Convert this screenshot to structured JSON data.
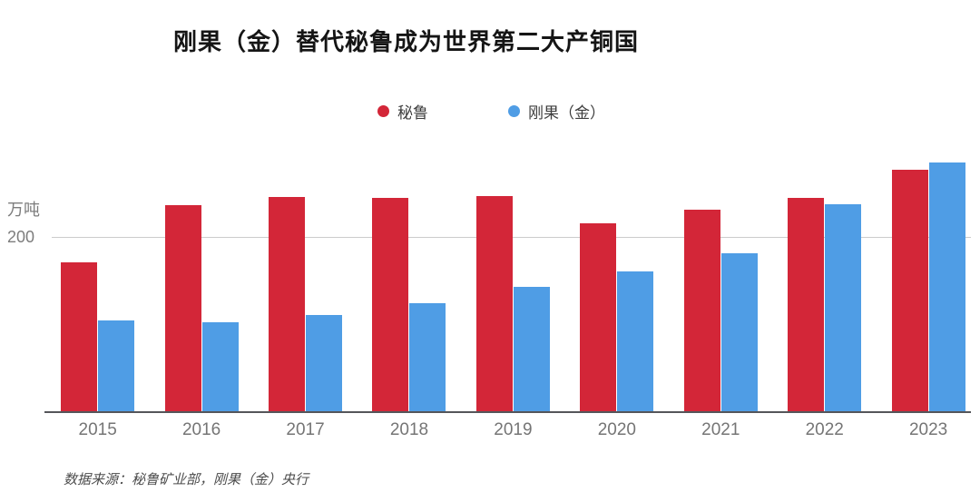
{
  "title": "刚果（金）替代秘鲁成为世界第二大产铜国",
  "legend": [
    {
      "label": "秘鲁",
      "color": "#d32638"
    },
    {
      "label": "刚果（金）",
      "color": "#4f9de5"
    }
  ],
  "y_axis": {
    "unit_label": "万吨",
    "tick_label": "200",
    "tick_value": 200
  },
  "source": "数据来源：秘鲁矿业部，刚果（金）央行",
  "colors": {
    "peru_red": "#d32638",
    "congo_blue": "#4f9de5",
    "axis_line": "#55565a",
    "gridline": "#cccccc",
    "label_gray": "#757575"
  },
  "chart_data": {
    "type": "bar",
    "title": "刚果（金）替代秘鲁成为世界第二大产铜国",
    "categories": [
      "2015",
      "2016",
      "2017",
      "2018",
      "2019",
      "2020",
      "2021",
      "2022",
      "2023"
    ],
    "series": [
      {
        "name": "秘鲁",
        "color": "#d32638",
        "values": [
          170,
          235,
          245,
          244,
          246,
          215,
          230,
          244,
          276
        ]
      },
      {
        "name": "刚果（金）",
        "color": "#4f9de5",
        "values": [
          104,
          102,
          110,
          123,
          142,
          160,
          180,
          236,
          284
        ]
      }
    ],
    "xlabel": "",
    "ylabel": "万吨",
    "ylim": [
      0,
      290
    ],
    "yticks": [
      200
    ],
    "grid": "single horizontal gridline at y=200",
    "legend_position": "top-center",
    "bar_layout": "grouped pairs, red left / blue right"
  }
}
